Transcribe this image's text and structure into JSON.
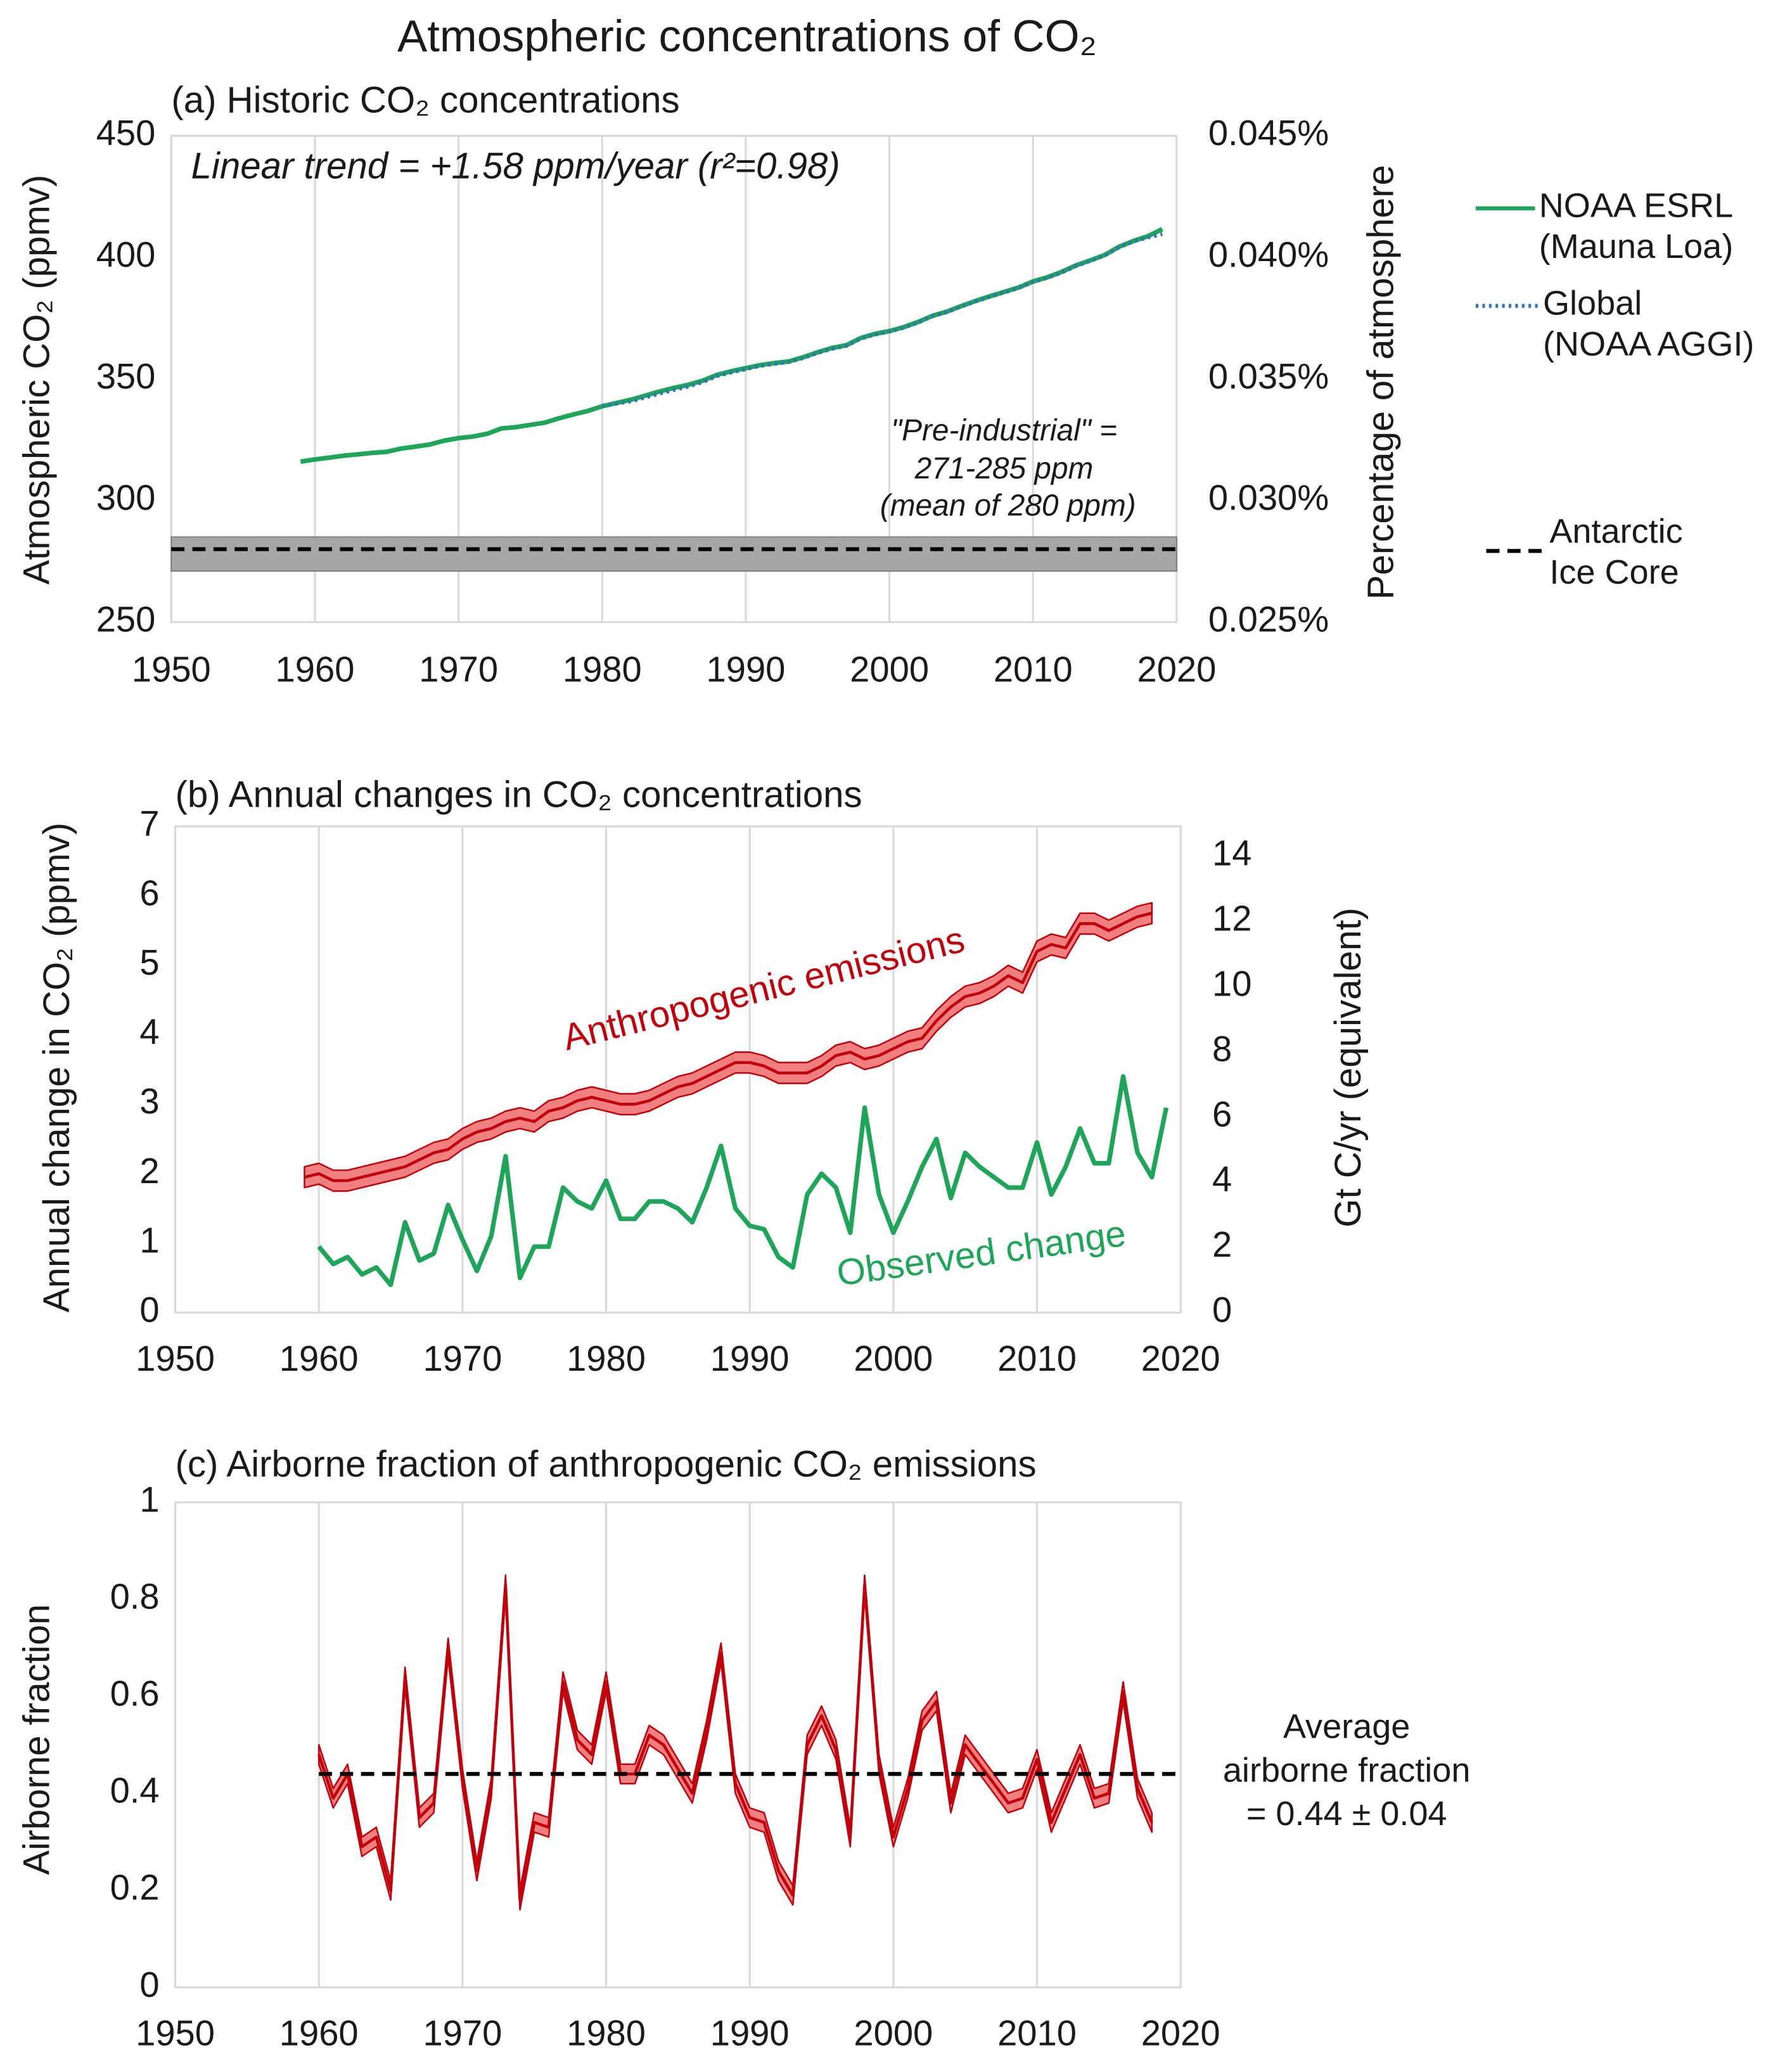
{
  "title": "Atmospheric concentrations of CO₂",
  "chart_data": [
    {
      "type": "line",
      "title": "(a) Historic CO₂ concentrations",
      "y_label": "Atmospheric CO₂ (ppmv)",
      "y2_label": "Percentage of atmosphere",
      "xlim": [
        1950,
        2020
      ],
      "xticks": [
        1950,
        1960,
        1970,
        1980,
        1990,
        2000,
        2010,
        2020
      ],
      "ylim": [
        250,
        450
      ],
      "yticks": [
        250,
        300,
        350,
        400,
        450
      ],
      "y2lim": [
        0.025,
        0.045
      ],
      "y2ticks": [
        {
          "value": 0.025,
          "label": "0.025%"
        },
        {
          "value": 0.03,
          "label": "0.030%"
        },
        {
          "value": 0.035,
          "label": "0.035%"
        },
        {
          "value": 0.04,
          "label": "0.040%"
        },
        {
          "value": 0.045,
          "label": "0.045%"
        }
      ],
      "grid": "x",
      "legend": "right",
      "annotations": [
        "Linear trend = +1.58 ppm/year (r²=0.98)",
        "\"Pre-industrial\" =",
        "271-285 ppm",
        "(mean of 280 ppm)"
      ],
      "band": [
        271,
        285
      ],
      "band_color": "#a6a6a6",
      "reference": 280,
      "reference_x": [
        1950,
        2020
      ],
      "reference_name": "Antarctic Ice Core",
      "reference_color": "#000000",
      "series": [
        {
          "name": "NOAA ESRL (Mauna Loa)",
          "color": "#1fa55a",
          "line_style": "solid",
          "x": [
            1959,
            1960,
            1961,
            1962,
            1963,
            1964,
            1965,
            1966,
            1967,
            1968,
            1969,
            1970,
            1971,
            1972,
            1973,
            1974,
            1975,
            1976,
            1977,
            1978,
            1979,
            1980,
            1981,
            1982,
            1983,
            1984,
            1985,
            1986,
            1987,
            1988,
            1989,
            1990,
            1991,
            1992,
            1993,
            1994,
            1995,
            1996,
            1997,
            1998,
            1999,
            2000,
            2001,
            2002,
            2003,
            2004,
            2005,
            2006,
            2007,
            2008,
            2009,
            2010,
            2011,
            2012,
            2013,
            2014,
            2015,
            2016,
            2017,
            2018,
            2019
          ],
          "values": [
            315.98,
            316.91,
            317.64,
            318.45,
            318.99,
            319.62,
            320.04,
            321.37,
            322.18,
            323.05,
            324.62,
            325.68,
            326.32,
            327.46,
            329.68,
            330.19,
            331.12,
            332.03,
            333.84,
            335.41,
            336.84,
            338.76,
            340.12,
            341.48,
            343.15,
            344.85,
            346.35,
            347.61,
            349.31,
            351.69,
            353.2,
            354.45,
            355.7,
            356.54,
            357.21,
            358.96,
            360.97,
            362.74,
            363.88,
            366.84,
            368.54,
            369.71,
            371.32,
            373.45,
            375.98,
            377.7,
            379.98,
            382.09,
            384.02,
            385.83,
            387.64,
            390.1,
            391.85,
            394.06,
            396.74,
            398.81,
            401.01,
            404.41,
            406.76,
            408.72,
            411.66
          ]
        },
        {
          "name": "Global (NOAA AGGI)",
          "color": "#2e75b6",
          "line_style": "dotted",
          "x": [
            1980,
            1981,
            1982,
            1983,
            1984,
            1985,
            1986,
            1987,
            1988,
            1989,
            1990,
            1991,
            1992,
            1993,
            1994,
            1995,
            1996,
            1997,
            1998,
            1999,
            2000,
            2001,
            2002,
            2003,
            2004,
            2005,
            2006,
            2007,
            2008,
            2009,
            2010,
            2011,
            2012,
            2013,
            2014,
            2015,
            2016,
            2017,
            2018,
            2019
          ],
          "values": [
            338.9,
            339.9,
            340.8,
            342.4,
            344.0,
            345.5,
            346.9,
            348.7,
            351.2,
            352.7,
            354.0,
            355.4,
            356.2,
            357.0,
            358.6,
            360.7,
            362.4,
            363.6,
            366.6,
            368.3,
            369.5,
            371.1,
            373.2,
            375.8,
            377.5,
            379.8,
            381.9,
            383.8,
            385.6,
            387.4,
            389.9,
            391.6,
            393.8,
            396.5,
            398.6,
            400.8,
            404.2,
            406.6,
            408.2,
            409.6
          ]
        }
      ]
    },
    {
      "type": "line",
      "title": "(b) Annual changes in CO₂ concentrations",
      "y_label": "Annual change in CO₂ (ppmv)",
      "y2_label": "Gt C/yr (equivalent)",
      "xlim": [
        1950,
        2020
      ],
      "xticks": [
        1950,
        1960,
        1970,
        1980,
        1990,
        2000,
        2010,
        2020
      ],
      "ylim": [
        0,
        7
      ],
      "yticks": [
        0,
        1,
        2,
        3,
        4,
        5,
        6,
        7
      ],
      "y2lim": [
        0,
        14.91
      ],
      "y2ticks": [
        0,
        2,
        4,
        6,
        8,
        10,
        12,
        14
      ],
      "grid": "x",
      "legend": "inline",
      "series": [
        {
          "name": "Anthropogenic emissions",
          "color": "#c0000b",
          "band_color": "#f08080",
          "error": 0.15,
          "x": [
            1959,
            1960,
            1961,
            1962,
            1963,
            1964,
            1965,
            1966,
            1967,
            1968,
            1969,
            1970,
            1971,
            1972,
            1973,
            1974,
            1975,
            1976,
            1977,
            1978,
            1979,
            1980,
            1981,
            1982,
            1983,
            1984,
            1985,
            1986,
            1987,
            1988,
            1989,
            1990,
            1991,
            1992,
            1993,
            1994,
            1995,
            1996,
            1997,
            1998,
            1999,
            2000,
            2001,
            2002,
            2003,
            2004,
            2005,
            2006,
            2007,
            2008,
            2009,
            2010,
            2011,
            2012,
            2013,
            2014,
            2015,
            2016,
            2017,
            2018
          ],
          "values": [
            1.95,
            2.0,
            1.9,
            1.9,
            1.95,
            2.0,
            2.05,
            2.1,
            2.2,
            2.3,
            2.35,
            2.5,
            2.6,
            2.65,
            2.75,
            2.8,
            2.75,
            2.9,
            2.95,
            3.05,
            3.1,
            3.05,
            3.0,
            3.0,
            3.05,
            3.15,
            3.25,
            3.3,
            3.4,
            3.5,
            3.6,
            3.6,
            3.55,
            3.45,
            3.45,
            3.45,
            3.55,
            3.7,
            3.75,
            3.65,
            3.7,
            3.8,
            3.9,
            3.95,
            4.2,
            4.4,
            4.55,
            4.6,
            4.7,
            4.85,
            4.75,
            5.2,
            5.3,
            5.25,
            5.6,
            5.6,
            5.5,
            5.6,
            5.7,
            5.75
          ]
        },
        {
          "name": "Observed change",
          "color": "#1fa55a",
          "x": [
            1960,
            1961,
            1962,
            1963,
            1964,
            1965,
            1966,
            1967,
            1968,
            1969,
            1970,
            1971,
            1972,
            1973,
            1974,
            1975,
            1976,
            1977,
            1978,
            1979,
            1980,
            1981,
            1982,
            1983,
            1984,
            1985,
            1986,
            1987,
            1988,
            1989,
            1990,
            1991,
            1992,
            1993,
            1994,
            1995,
            1996,
            1997,
            1998,
            1999,
            2000,
            2001,
            2002,
            2003,
            2004,
            2005,
            2006,
            2007,
            2008,
            2009,
            2010,
            2011,
            2012,
            2013,
            2014,
            2015,
            2016,
            2017,
            2018,
            2019
          ],
          "values": [
            0.95,
            0.7,
            0.8,
            0.55,
            0.65,
            0.4,
            1.3,
            0.75,
            0.85,
            1.55,
            1.05,
            0.6,
            1.1,
            2.25,
            0.5,
            0.95,
            0.95,
            1.8,
            1.6,
            1.5,
            1.9,
            1.35,
            1.35,
            1.6,
            1.6,
            1.5,
            1.3,
            1.8,
            2.4,
            1.5,
            1.25,
            1.2,
            0.8,
            0.65,
            1.7,
            2.0,
            1.8,
            1.15,
            2.95,
            1.7,
            1.15,
            1.6,
            2.1,
            2.5,
            1.65,
            2.3,
            2.1,
            1.95,
            1.8,
            1.8,
            2.45,
            1.7,
            2.1,
            2.65,
            2.15,
            2.15,
            3.4,
            2.3,
            1.95,
            2.95
          ]
        }
      ]
    },
    {
      "type": "line",
      "title": "(c) Airborne fraction of anthropogenic CO₂ emissions",
      "y_label": "Airborne fraction",
      "xlim": [
        1950,
        2020
      ],
      "xticks": [
        1950,
        1960,
        1970,
        1980,
        1990,
        2000,
        2010,
        2020
      ],
      "ylim": [
        0,
        1
      ],
      "yticks": [
        0,
        0.2,
        0.4,
        0.6,
        0.8,
        1
      ],
      "grid": "x",
      "annotations": [
        "Average",
        "airborne fraction",
        "= 0.44 ± 0.04"
      ],
      "reference": 0.44,
      "reference_x": [
        1960,
        2020
      ],
      "reference_color": "#000000",
      "series": [
        {
          "color": "#c0000b",
          "band_color": "#f08080",
          "error": 0.02,
          "x": [
            1960,
            1961,
            1962,
            1963,
            1964,
            1965,
            1966,
            1967,
            1968,
            1969,
            1970,
            1971,
            1972,
            1973,
            1974,
            1975,
            1976,
            1977,
            1978,
            1979,
            1980,
            1981,
            1982,
            1983,
            1984,
            1985,
            1986,
            1987,
            1988,
            1989,
            1990,
            1991,
            1992,
            1993,
            1994,
            1995,
            1996,
            1997,
            1998,
            1999,
            2000,
            2001,
            2002,
            2003,
            2004,
            2005,
            2006,
            2007,
            2008,
            2009,
            2010,
            2011,
            2012,
            2013,
            2014,
            2015,
            2016,
            2017,
            2018
          ],
          "values": [
            0.48,
            0.39,
            0.44,
            0.29,
            0.31,
            0.2,
            0.64,
            0.35,
            0.38,
            0.7,
            0.43,
            0.24,
            0.41,
            0.83,
            0.18,
            0.34,
            0.33,
            0.63,
            0.51,
            0.48,
            0.63,
            0.44,
            0.44,
            0.52,
            0.5,
            0.45,
            0.4,
            0.53,
            0.69,
            0.42,
            0.35,
            0.34,
            0.24,
            0.19,
            0.5,
            0.56,
            0.49,
            0.31,
            0.83,
            0.46,
            0.31,
            0.41,
            0.55,
            0.59,
            0.38,
            0.5,
            0.46,
            0.42,
            0.38,
            0.39,
            0.47,
            0.34,
            0.41,
            0.48,
            0.39,
            0.4,
            0.61,
            0.41,
            0.34
          ]
        }
      ]
    }
  ]
}
